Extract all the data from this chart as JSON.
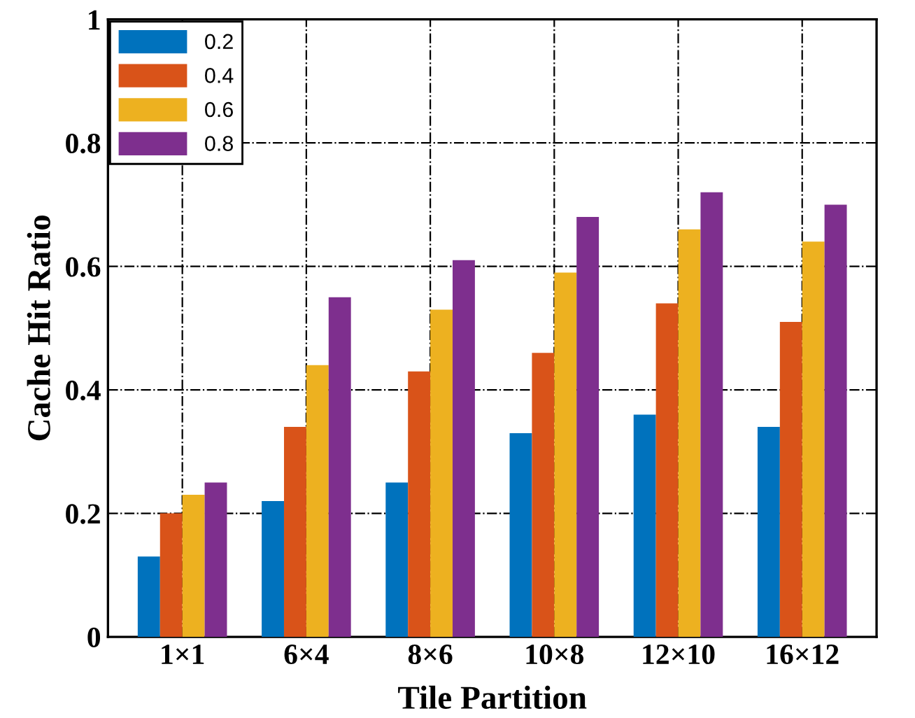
{
  "chart_data": {
    "type": "bar",
    "xlabel": "Tile Partition",
    "ylabel": "Cache Hit Ratio",
    "categories": [
      "1×1",
      "6×4",
      "8×6",
      "10×8",
      "12×10",
      "16×12"
    ],
    "series": [
      {
        "name": "0.2",
        "color": "#0072bd",
        "values": [
          0.13,
          0.22,
          0.25,
          0.33,
          0.36,
          0.34
        ]
      },
      {
        "name": "0.4",
        "color": "#d95319",
        "values": [
          0.2,
          0.34,
          0.43,
          0.46,
          0.54,
          0.51
        ]
      },
      {
        "name": "0.6",
        "color": "#edb120",
        "values": [
          0.23,
          0.44,
          0.53,
          0.59,
          0.66,
          0.64
        ]
      },
      {
        "name": "0.8",
        "color": "#7e2f8e",
        "values": [
          0.25,
          0.55,
          0.61,
          0.68,
          0.72,
          0.7
        ]
      }
    ],
    "ylim": [
      0,
      1
    ],
    "yticks": [
      0,
      0.2,
      0.4,
      0.6,
      0.8,
      1
    ],
    "grid": true,
    "legend": "top left"
  }
}
